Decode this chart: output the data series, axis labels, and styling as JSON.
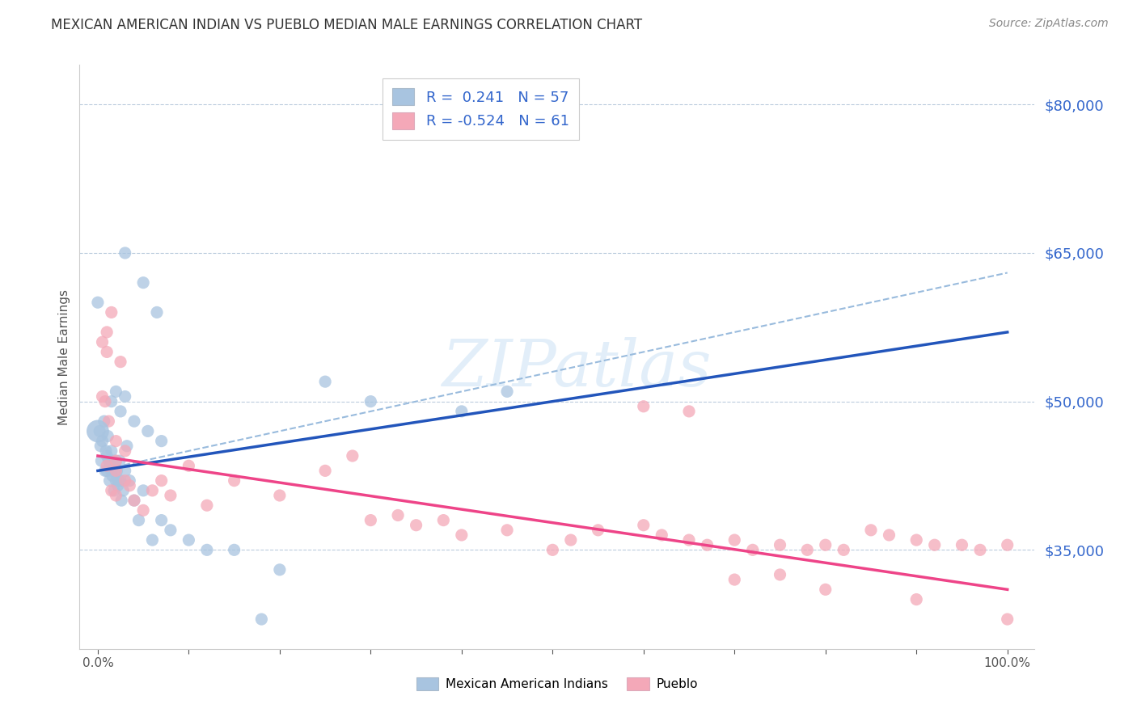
{
  "title": "MEXICAN AMERICAN INDIAN VS PUEBLO MEDIAN MALE EARNINGS CORRELATION CHART",
  "source": "Source: ZipAtlas.com",
  "ylabel": "Median Male Earnings",
  "right_yticks": [
    35000,
    50000,
    65000,
    80000
  ],
  "right_yticklabels": [
    "$35,000",
    "$50,000",
    "$65,000",
    "$80,000"
  ],
  "legend_label1": "Mexican American Indians",
  "legend_label2": "Pueblo",
  "R1": "0.241",
  "N1": "57",
  "R2": "-0.524",
  "N2": "61",
  "blue_color": "#A8C4E0",
  "pink_color": "#F4A8B8",
  "trend_blue": "#2255BB",
  "trend_pink": "#EE4488",
  "trend_gray_dash_color": "#99BBDD",
  "blue_scatter": [
    [
      0.2,
      47000
    ],
    [
      0.3,
      45500
    ],
    [
      0.4,
      44000
    ],
    [
      0.5,
      46000
    ],
    [
      0.7,
      48000
    ],
    [
      0.8,
      43000
    ],
    [
      0.9,
      45000
    ],
    [
      1.0,
      44500
    ],
    [
      1.0,
      43000
    ],
    [
      1.1,
      46500
    ],
    [
      1.2,
      44000
    ],
    [
      1.3,
      42000
    ],
    [
      1.4,
      43500
    ],
    [
      1.5,
      45000
    ],
    [
      1.5,
      43000
    ],
    [
      1.6,
      42500
    ],
    [
      1.7,
      44000
    ],
    [
      1.8,
      41000
    ],
    [
      1.9,
      43000
    ],
    [
      2.0,
      44000
    ],
    [
      2.0,
      42000
    ],
    [
      2.1,
      43000
    ],
    [
      2.2,
      41500
    ],
    [
      2.3,
      42000
    ],
    [
      2.4,
      44000
    ],
    [
      2.5,
      42000
    ],
    [
      2.6,
      40000
    ],
    [
      2.8,
      41000
    ],
    [
      3.0,
      43000
    ],
    [
      3.2,
      45500
    ],
    [
      3.5,
      42000
    ],
    [
      4.0,
      40000
    ],
    [
      4.5,
      38000
    ],
    [
      5.0,
      41000
    ],
    [
      6.0,
      36000
    ],
    [
      7.0,
      38000
    ],
    [
      8.0,
      37000
    ],
    [
      10.0,
      36000
    ],
    [
      12.0,
      35000
    ],
    [
      15.0,
      35000
    ],
    [
      18.0,
      28000
    ],
    [
      20.0,
      33000
    ],
    [
      3.0,
      65000
    ],
    [
      5.0,
      62000
    ],
    [
      6.5,
      59000
    ],
    [
      25.0,
      52000
    ],
    [
      30.0,
      50000
    ],
    [
      40.0,
      49000
    ],
    [
      45.0,
      51000
    ],
    [
      0.0,
      60000
    ],
    [
      1.5,
      50000
    ],
    [
      2.0,
      51000
    ],
    [
      2.5,
      49000
    ],
    [
      3.0,
      50500
    ],
    [
      4.0,
      48000
    ],
    [
      5.5,
      47000
    ],
    [
      7.0,
      46000
    ]
  ],
  "pink_scatter": [
    [
      0.5,
      56000
    ],
    [
      1.5,
      59000
    ],
    [
      2.5,
      54000
    ],
    [
      1.0,
      57000
    ],
    [
      1.0,
      55000
    ],
    [
      2.0,
      44000
    ],
    [
      0.8,
      50000
    ],
    [
      0.5,
      50500
    ],
    [
      1.2,
      48000
    ],
    [
      2.0,
      46000
    ],
    [
      3.0,
      45000
    ],
    [
      1.0,
      43500
    ],
    [
      2.0,
      43000
    ],
    [
      3.0,
      42000
    ],
    [
      1.5,
      41000
    ],
    [
      2.0,
      40500
    ],
    [
      3.5,
      41500
    ],
    [
      4.0,
      40000
    ],
    [
      5.0,
      39000
    ],
    [
      6.0,
      41000
    ],
    [
      7.0,
      42000
    ],
    [
      8.0,
      40500
    ],
    [
      10.0,
      43500
    ],
    [
      12.0,
      39500
    ],
    [
      15.0,
      42000
    ],
    [
      20.0,
      40500
    ],
    [
      25.0,
      43000
    ],
    [
      28.0,
      44500
    ],
    [
      30.0,
      38000
    ],
    [
      33.0,
      38500
    ],
    [
      35.0,
      37500
    ],
    [
      38.0,
      38000
    ],
    [
      40.0,
      36500
    ],
    [
      45.0,
      37000
    ],
    [
      50.0,
      35000
    ],
    [
      52.0,
      36000
    ],
    [
      55.0,
      37000
    ],
    [
      60.0,
      37500
    ],
    [
      62.0,
      36500
    ],
    [
      65.0,
      36000
    ],
    [
      67.0,
      35500
    ],
    [
      70.0,
      36000
    ],
    [
      72.0,
      35000
    ],
    [
      75.0,
      35500
    ],
    [
      78.0,
      35000
    ],
    [
      80.0,
      35500
    ],
    [
      82.0,
      35000
    ],
    [
      85.0,
      37000
    ],
    [
      87.0,
      36500
    ],
    [
      90.0,
      36000
    ],
    [
      92.0,
      35500
    ],
    [
      95.0,
      35500
    ],
    [
      97.0,
      35000
    ],
    [
      100.0,
      35500
    ],
    [
      60.0,
      49500
    ],
    [
      65.0,
      49000
    ],
    [
      70.0,
      32000
    ],
    [
      75.0,
      32500
    ],
    [
      80.0,
      31000
    ],
    [
      90.0,
      30000
    ],
    [
      100.0,
      28000
    ]
  ],
  "xlim": [
    -2,
    103
  ],
  "ylim": [
    25000,
    84000
  ],
  "figsize": [
    14.06,
    8.92
  ],
  "dpi": 100,
  "blue_trend_y0": 43000,
  "blue_trend_y1": 57000,
  "pink_trend_y0": 44500,
  "pink_trend_y1": 31000,
  "gray_dash_y0": 43000,
  "gray_dash_y1": 63000
}
